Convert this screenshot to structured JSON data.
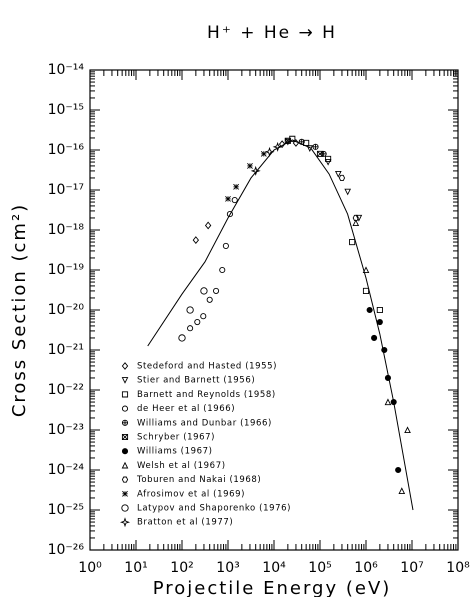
{
  "chart_data": {
    "type": "scatter",
    "title": "H⁺ + He → H",
    "x_label": "Projectile Energy (eV)",
    "y_label": "Cross Section (cm²)",
    "xscale": "log",
    "yscale": "log",
    "xlim": [
      1,
      100000000
    ],
    "ylim": [
      1e-26,
      1e-14
    ],
    "xticks": [
      {
        "value": 1,
        "label": "10⁰"
      },
      {
        "value": 10,
        "label": "10¹"
      },
      {
        "value": 100,
        "label": "10²"
      },
      {
        "value": 1000,
        "label": "10³"
      },
      {
        "value": 10000,
        "label": "10⁴"
      },
      {
        "value": 100000,
        "label": "10⁵"
      },
      {
        "value": 1000000,
        "label": "10⁶"
      },
      {
        "value": 10000000,
        "label": "10⁷"
      },
      {
        "value": 100000000,
        "label": "10⁸"
      }
    ],
    "yticks": [
      {
        "value": 1e-26,
        "label": "10⁻²⁶"
      },
      {
        "value": 1e-25,
        "label": "10⁻²⁵"
      },
      {
        "value": 1e-24,
        "label": "10⁻²⁴"
      },
      {
        "value": 1e-23,
        "label": "10⁻²³"
      },
      {
        "value": 1e-22,
        "label": "10⁻²²"
      },
      {
        "value": 1e-21,
        "label": "10⁻²¹"
      },
      {
        "value": 1e-20,
        "label": "10⁻²⁰"
      },
      {
        "value": 1e-19,
        "label": "10⁻¹⁹"
      },
      {
        "value": 1e-18,
        "label": "10⁻¹⁸"
      },
      {
        "value": 1e-17,
        "label": "10⁻¹⁷"
      },
      {
        "value": 1e-16,
        "label": "10⁻¹⁶"
      },
      {
        "value": 1e-15,
        "label": "10⁻¹⁵"
      },
      {
        "value": 1e-14,
        "label": "10⁻¹⁴"
      }
    ],
    "series": [
      {
        "name": "Stedeford and Hasted (1955)",
        "marker": "diamond",
        "color": "#000",
        "x": [
          200,
          370,
          15000,
          30000
        ],
        "values": [
          5.6e-19,
          1.3e-18,
          1.4e-16,
          1.5e-16
        ]
      },
      {
        "name": "Stier and Barnett (1956)",
        "marker": "tri-down",
        "color": "#000",
        "x": [
          20000,
          60000,
          150000,
          250000,
          400000,
          700000
        ],
        "values": [
          1.6e-16,
          1.1e-16,
          5e-17,
          2.5e-17,
          9e-18,
          2e-18
        ]
      },
      {
        "name": "Barnett and Reynolds (1958)",
        "marker": "square",
        "color": "#000",
        "x": [
          25000,
          50000,
          150000,
          500000,
          1000000,
          2000000
        ],
        "values": [
          1.9e-16,
          1.5e-16,
          6e-17,
          5e-19,
          3e-20,
          1e-20
        ]
      },
      {
        "name": "de Heer et al (1966)",
        "marker": "circle",
        "color": "#000",
        "x": [
          150,
          215,
          290,
          400,
          550,
          750,
          900,
          1100,
          1400
        ],
        "values": [
          3.5e-21,
          5e-21,
          7e-21,
          1.8e-20,
          3e-20,
          1e-19,
          4e-19,
          2.5e-18,
          5.6e-18
        ]
      },
      {
        "name": "Williams and Dunbar (1966)",
        "marker": "circle-plus",
        "color": "#000",
        "x": [
          40000,
          80000,
          120000
        ],
        "values": [
          1.6e-16,
          1.2e-16,
          8e-17
        ]
      },
      {
        "name": "Schryber (1967)",
        "marker": "square-x",
        "color": "#000",
        "x": [
          20000,
          100000
        ],
        "values": [
          1.7e-16,
          8e-17
        ]
      },
      {
        "name": "Williams (1967)",
        "marker": "filled-circle",
        "color": "#000",
        "x": [
          1200000,
          1500000,
          2000000,
          2500000,
          3000000,
          4000000,
          5000000
        ],
        "values": [
          1e-20,
          2e-21,
          5e-21,
          1e-21,
          2e-22,
          5e-23,
          1e-24
        ]
      },
      {
        "name": "Welsh et al (1967)",
        "marker": "triangle",
        "color": "#000",
        "x": [
          600000,
          1000000,
          3000000,
          6000000,
          8000000
        ],
        "values": [
          1.5e-18,
          1e-19,
          5e-23,
          3e-25,
          1e-23
        ]
      },
      {
        "name": "Toburen and Nakai (1968)",
        "marker": "hexagon",
        "color": "#000",
        "x": [
          300000,
          600000
        ],
        "values": [
          2e-17,
          2e-18
        ]
      },
      {
        "name": "Afrosimov et al (1969)",
        "marker": "asterisk",
        "color": "#000",
        "x": [
          1000,
          1500,
          3000,
          6000
        ],
        "values": [
          6e-18,
          1.2e-17,
          4e-17,
          8e-17
        ]
      },
      {
        "name": "Latypov and Shaporenko (1976)",
        "marker": "big-circle",
        "color": "#000",
        "x": [
          100,
          150,
          300
        ],
        "values": [
          2e-21,
          1e-20,
          3e-20
        ]
      },
      {
        "name": "Bratton et al (1977)",
        "marker": "star",
        "color": "#000",
        "x": [
          4000,
          8000,
          12000
        ],
        "values": [
          3e-17,
          9e-17,
          1.2e-16
        ]
      }
    ],
    "curve": {
      "color": "#000",
      "x": [
        18,
        100,
        316,
        1000,
        3162,
        10000,
        25000,
        63000,
        158000,
        398000,
        1000000,
        2000000,
        4000000,
        10500000
      ],
      "values": [
        1.26e-21,
        2.5e-20,
        1.6e-19,
        2e-18,
        2e-17,
        1e-16,
        1.78e-16,
        1.12e-16,
        2.5e-17,
        2.5e-18,
        6.3e-20,
        2.5e-21,
        5e-23,
        1e-25
      ]
    }
  }
}
